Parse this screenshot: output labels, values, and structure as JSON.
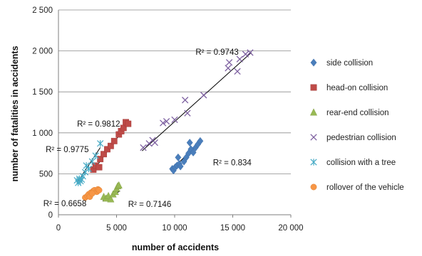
{
  "chart_data": {
    "type": "scatter",
    "title": "",
    "xlabel": "number  of accidents",
    "ylabel": "number  of fatalities in accidents",
    "xlim": [
      0,
      20000
    ],
    "ylim": [
      0,
      2500
    ],
    "x_ticks": [
      0,
      5000,
      10000,
      15000,
      20000
    ],
    "x_tick_labels": [
      "0",
      "5 000",
      "10 000",
      "15 000",
      "20 000"
    ],
    "y_ticks": [
      0,
      500,
      1000,
      1500,
      2000,
      2500
    ],
    "y_tick_labels": [
      "0",
      "500",
      "1 000",
      "1 500",
      "2 000",
      "2 500"
    ],
    "grid": "horizontal",
    "legend_position": "right",
    "series": [
      {
        "name": "side collision",
        "marker": "diamond",
        "color": "#4a7ebb",
        "points": [
          [
            9800,
            560
          ],
          [
            9900,
            540
          ],
          [
            10050,
            580
          ],
          [
            10200,
            600
          ],
          [
            10400,
            620
          ],
          [
            10300,
            700
          ],
          [
            10500,
            590
          ],
          [
            10800,
            650
          ],
          [
            11000,
            700
          ],
          [
            11200,
            750
          ],
          [
            11400,
            800
          ],
          [
            11600,
            760
          ],
          [
            11800,
            820
          ],
          [
            12000,
            860
          ],
          [
            12200,
            900
          ],
          [
            11300,
            880
          ]
        ],
        "trendline": [
          [
            9800,
            560
          ],
          [
            12200,
            890
          ]
        ],
        "r2_label": "R² = 0.834",
        "r2_at": [
          13300,
          640
        ]
      },
      {
        "name": "head-on collision",
        "marker": "square",
        "color": "#be4b48",
        "points": [
          [
            3000,
            550
          ],
          [
            3200,
            600
          ],
          [
            3500,
            580
          ],
          [
            3600,
            680
          ],
          [
            3900,
            740
          ],
          [
            4200,
            800
          ],
          [
            4500,
            840
          ],
          [
            4800,
            900
          ],
          [
            5200,
            980
          ],
          [
            5400,
            1020
          ],
          [
            5600,
            1060
          ],
          [
            5800,
            1130
          ],
          [
            6000,
            1110
          ]
        ],
        "trendline": [
          [
            2900,
            520
          ],
          [
            6100,
            1140
          ]
        ],
        "r2_label": "R² = 0.9812",
        "r2_at": [
          1600,
          1110
        ]
      },
      {
        "name": "rear-end collision",
        "marker": "triangle",
        "color": "#98b954",
        "points": [
          [
            3900,
            220
          ],
          [
            4100,
            200
          ],
          [
            4300,
            230
          ],
          [
            4500,
            190
          ],
          [
            4700,
            250
          ],
          [
            4900,
            280
          ],
          [
            5000,
            320
          ],
          [
            5100,
            350
          ],
          [
            5200,
            360
          ]
        ],
        "trendline": [
          [
            3800,
            170
          ],
          [
            5300,
            290
          ]
        ],
        "r2_label": "R² = 0.7146",
        "r2_at": [
          6000,
          130
        ]
      },
      {
        "name": "pedestrian collision",
        "marker": "x",
        "color": "#7d60a0",
        "points": [
          [
            7300,
            820
          ],
          [
            7800,
            870
          ],
          [
            8100,
            910
          ],
          [
            8300,
            880
          ],
          [
            9000,
            1120
          ],
          [
            9300,
            1140
          ],
          [
            10000,
            1160
          ],
          [
            10900,
            1400
          ],
          [
            11100,
            1240
          ],
          [
            12500,
            1460
          ],
          [
            14600,
            1790
          ],
          [
            14700,
            1860
          ],
          [
            15400,
            1750
          ],
          [
            15600,
            1900
          ],
          [
            16100,
            1960
          ],
          [
            16500,
            1980
          ]
        ],
        "trendline": [
          [
            7200,
            780
          ],
          [
            16600,
            1980
          ]
        ],
        "r2_label": "R² = 0.9743",
        "r2_at": [
          11800,
          1990
        ]
      },
      {
        "name": "collision with a tree",
        "marker": "star",
        "color": "#46aac5",
        "points": [
          [
            1600,
            420
          ],
          [
            1800,
            440
          ],
          [
            2000,
            430
          ],
          [
            2100,
            470
          ],
          [
            2300,
            520
          ],
          [
            2400,
            600
          ],
          [
            2600,
            560
          ],
          [
            2900,
            650
          ],
          [
            3200,
            720
          ],
          [
            3600,
            870
          ],
          [
            1700,
            390
          ],
          [
            1900,
            410
          ]
        ],
        "trendline": [
          [
            1600,
            390
          ],
          [
            3600,
            820
          ]
        ],
        "r2_label": "R² = 0.9775",
        "r2_at": [
          -1100,
          800
        ]
      },
      {
        "name": "rollover of the vehicle",
        "marker": "circle",
        "color": "#f79646",
        "points": [
          [
            2300,
            210
          ],
          [
            2500,
            230
          ],
          [
            2600,
            250
          ],
          [
            2800,
            270
          ],
          [
            3000,
            290
          ],
          [
            3100,
            300
          ],
          [
            3300,
            280
          ],
          [
            3400,
            310
          ],
          [
            3500,
            300
          ],
          [
            2700,
            220
          ],
          [
            2900,
            260
          ]
        ],
        "trendline": [
          [
            2300,
            170
          ],
          [
            3500,
            320
          ]
        ],
        "r2_label": "R² = 0.6658",
        "r2_at": [
          -1300,
          140
        ]
      }
    ]
  }
}
